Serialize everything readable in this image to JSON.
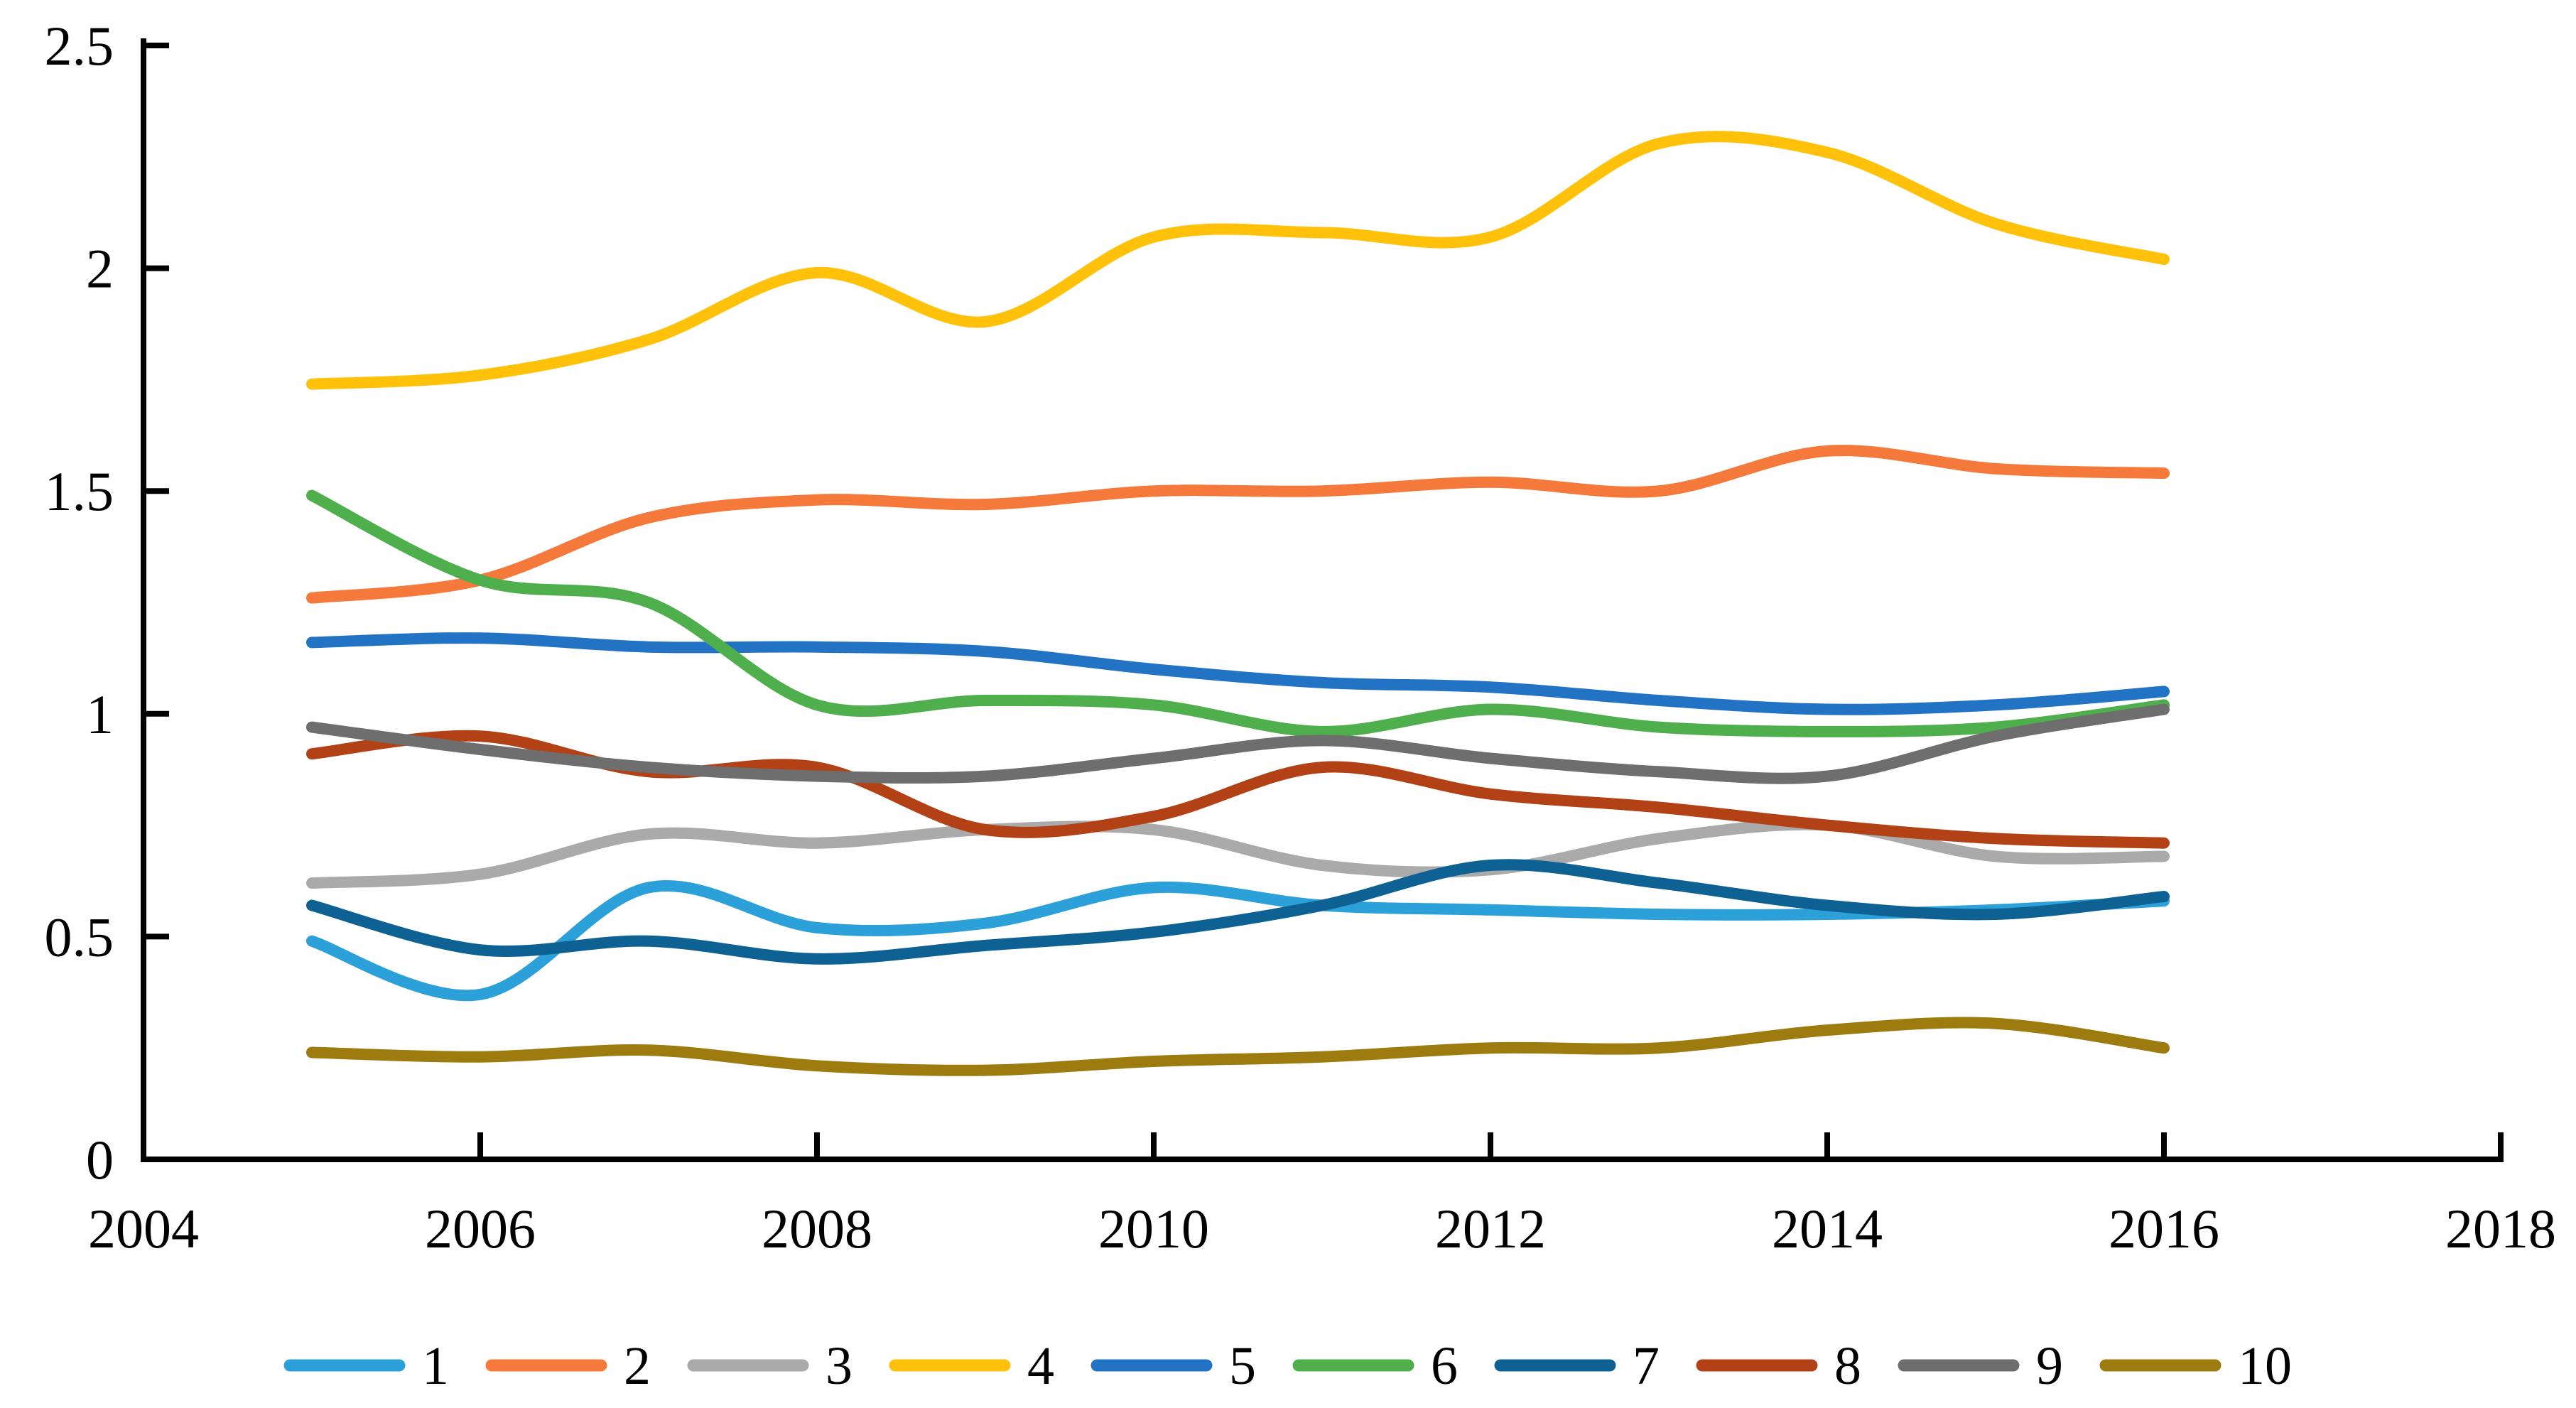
{
  "chart_data": {
    "type": "line",
    "smooth": true,
    "title": "",
    "xlabel": "",
    "ylabel": "",
    "grid": false,
    "legend_position": "bottom",
    "xlim": [
      2004,
      2018
    ],
    "ylim": [
      0,
      2.5
    ],
    "x_ticks": [
      2004,
      2006,
      2008,
      2010,
      2012,
      2014,
      2016,
      2018
    ],
    "x_tick_labels": [
      "2004",
      "2006",
      "2008",
      "2010",
      "2012",
      "2014",
      "2016",
      "2018"
    ],
    "y_ticks": [
      0,
      0.5,
      1,
      1.5,
      2,
      2.5
    ],
    "y_tick_labels": [
      "0",
      "0.5",
      "1",
      "1.5",
      "2",
      "2.5"
    ],
    "x": [
      2005,
      2006,
      2007,
      2008,
      2009,
      2010,
      2011,
      2012,
      2013,
      2014,
      2015,
      2016
    ],
    "series": [
      {
        "name": "1",
        "color": "#2BA0D9",
        "values": [
          0.49,
          0.37,
          0.61,
          0.52,
          0.53,
          0.61,
          0.57,
          0.56,
          0.55,
          0.55,
          0.56,
          0.58
        ]
      },
      {
        "name": "2",
        "color": "#F4793B",
        "values": [
          1.26,
          1.3,
          1.44,
          1.48,
          1.47,
          1.5,
          1.5,
          1.52,
          1.5,
          1.59,
          1.55,
          1.54
        ]
      },
      {
        "name": "3",
        "color": "#AAAAAA",
        "values": [
          0.62,
          0.64,
          0.73,
          0.71,
          0.74,
          0.74,
          0.66,
          0.65,
          0.72,
          0.75,
          0.68,
          0.68
        ]
      },
      {
        "name": "4",
        "color": "#FFC10A",
        "values": [
          1.74,
          1.76,
          1.84,
          1.99,
          1.88,
          2.07,
          2.08,
          2.07,
          2.28,
          2.26,
          2.1,
          2.02
        ]
      },
      {
        "name": "5",
        "color": "#2373C5",
        "values": [
          1.16,
          1.17,
          1.15,
          1.15,
          1.14,
          1.1,
          1.07,
          1.06,
          1.03,
          1.01,
          1.02,
          1.05
        ]
      },
      {
        "name": "6",
        "color": "#4FAF4D",
        "values": [
          1.49,
          1.3,
          1.25,
          1.02,
          1.03,
          1.02,
          0.96,
          1.01,
          0.97,
          0.96,
          0.97,
          1.02
        ]
      },
      {
        "name": "7",
        "color": "#0E6293",
        "values": [
          0.57,
          0.47,
          0.49,
          0.45,
          0.48,
          0.51,
          0.57,
          0.66,
          0.62,
          0.57,
          0.55,
          0.59
        ]
      },
      {
        "name": "8",
        "color": "#B34116",
        "values": [
          0.91,
          0.95,
          0.87,
          0.88,
          0.74,
          0.77,
          0.88,
          0.82,
          0.79,
          0.75,
          0.72,
          0.71
        ]
      },
      {
        "name": "9",
        "color": "#6E6E6E",
        "values": [
          0.97,
          0.92,
          0.88,
          0.86,
          0.86,
          0.9,
          0.94,
          0.9,
          0.87,
          0.86,
          0.95,
          1.01
        ]
      },
      {
        "name": "10",
        "color": "#9E7B0F",
        "values": [
          0.24,
          0.23,
          0.245,
          0.21,
          0.2,
          0.22,
          0.23,
          0.25,
          0.25,
          0.29,
          0.305,
          0.25
        ]
      }
    ],
    "axis_color": "#000000",
    "background_color": "#FFFFFF"
  }
}
